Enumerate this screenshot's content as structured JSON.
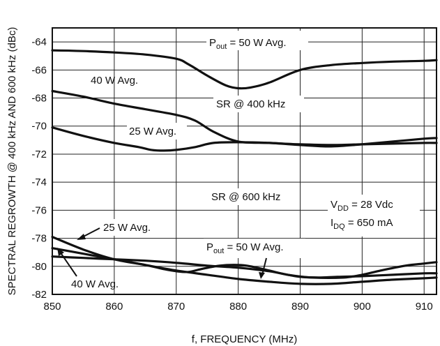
{
  "chart_data": {
    "type": "line",
    "xlabel": "f, FREQUENCY (MHz)",
    "ylabel": "SPECTRAL REGROWTH @ 400 kHz AND 600 kHz (dBc)",
    "xlim": [
      850,
      912
    ],
    "ylim": [
      -82,
      -63
    ],
    "xticks": [
      850,
      860,
      870,
      880,
      890,
      900,
      910
    ],
    "yticks": [
      -64,
      -66,
      -68,
      -70,
      -72,
      -74,
      -76,
      -78,
      -80,
      -82
    ],
    "grid": true,
    "series": [
      {
        "name": "SR @ 400 kHz, Pout = 50 W Avg.",
        "x": [
          850,
          855,
          860,
          865,
          870,
          872,
          875,
          878,
          880,
          882,
          885,
          890,
          895,
          900,
          905,
          910,
          912
        ],
        "y": [
          -64.6,
          -64.65,
          -64.75,
          -64.9,
          -65.2,
          -65.6,
          -66.4,
          -67.1,
          -67.3,
          -67.25,
          -66.9,
          -66.0,
          -65.65,
          -65.5,
          -65.4,
          -65.35,
          -65.3
        ]
      },
      {
        "name": "SR @ 400 kHz, 40 W Avg.",
        "x": [
          850,
          855,
          860,
          865,
          870,
          873,
          876,
          880,
          885,
          890,
          895,
          900,
          905,
          910,
          912
        ],
        "y": [
          -67.5,
          -67.9,
          -68.4,
          -68.8,
          -69.2,
          -69.6,
          -70.4,
          -71.1,
          -71.2,
          -71.3,
          -71.35,
          -71.3,
          -71.25,
          -71.2,
          -71.2
        ]
      },
      {
        "name": "SR @ 400 kHz, 25 W Avg.",
        "x": [
          850,
          855,
          860,
          864,
          866,
          868,
          870,
          873,
          876,
          880,
          885,
          890,
          895,
          900,
          905,
          910,
          912
        ],
        "y": [
          -70.1,
          -70.7,
          -71.2,
          -71.5,
          -71.7,
          -71.75,
          -71.7,
          -71.5,
          -71.2,
          -71.15,
          -71.2,
          -71.35,
          -71.45,
          -71.3,
          -71.1,
          -70.9,
          -70.85
        ]
      },
      {
        "name": "SR @ 600 kHz, 25 W Avg.",
        "x": [
          850,
          855,
          860,
          865,
          870,
          875,
          880,
          885,
          890,
          895,
          900,
          905,
          910,
          912
        ],
        "y": [
          -77.9,
          -78.8,
          -79.5,
          -79.9,
          -80.3,
          -80.6,
          -80.9,
          -81.1,
          -81.25,
          -81.25,
          -81.1,
          -80.95,
          -80.85,
          -80.8
        ]
      },
      {
        "name": "SR @ 600 kHz, 40 W Avg.",
        "x": [
          850,
          855,
          860,
          865,
          868,
          870,
          872,
          874,
          877,
          880,
          882,
          885,
          888,
          892,
          897,
          900,
          903,
          907,
          910,
          912
        ],
        "y": [
          -78.7,
          -79.1,
          -79.5,
          -79.9,
          -80.2,
          -80.35,
          -80.4,
          -80.2,
          -79.95,
          -79.9,
          -80.0,
          -80.3,
          -80.6,
          -80.8,
          -80.8,
          -80.6,
          -80.3,
          -79.95,
          -79.8,
          -79.7
        ]
      },
      {
        "name": "SR @ 600 kHz, Pout = 50 W Avg.",
        "x": [
          850,
          855,
          860,
          865,
          870,
          875,
          880,
          885,
          888,
          890,
          893,
          896,
          900,
          905,
          910,
          912
        ],
        "y": [
          -79.3,
          -79.4,
          -79.5,
          -79.6,
          -79.75,
          -79.95,
          -80.1,
          -80.35,
          -80.6,
          -80.75,
          -80.8,
          -80.75,
          -80.7,
          -80.6,
          -80.5,
          -80.5
        ]
      }
    ],
    "annotations": {
      "pout50_top": {
        "pre": "P",
        "sub": "out",
        "post": " = 50 W Avg."
      },
      "w40_top": "40 W Avg.",
      "sr400": "SR @ 400 kHz",
      "w25_top": "25 W Avg.",
      "sr600": "SR @ 600 kHz",
      "vdd": {
        "pre": "V",
        "sub": "DD",
        "post": " = 28 Vdc"
      },
      "idq": {
        "pre": "I",
        "sub": "DQ",
        "post": " = 650 mA"
      },
      "w25_bottom": "25 W Avg.",
      "pout50_bottom": {
        "pre": "P",
        "sub": "out",
        "post": " = 50 W Avg."
      },
      "w40_bottom": "40 W Avg."
    }
  }
}
